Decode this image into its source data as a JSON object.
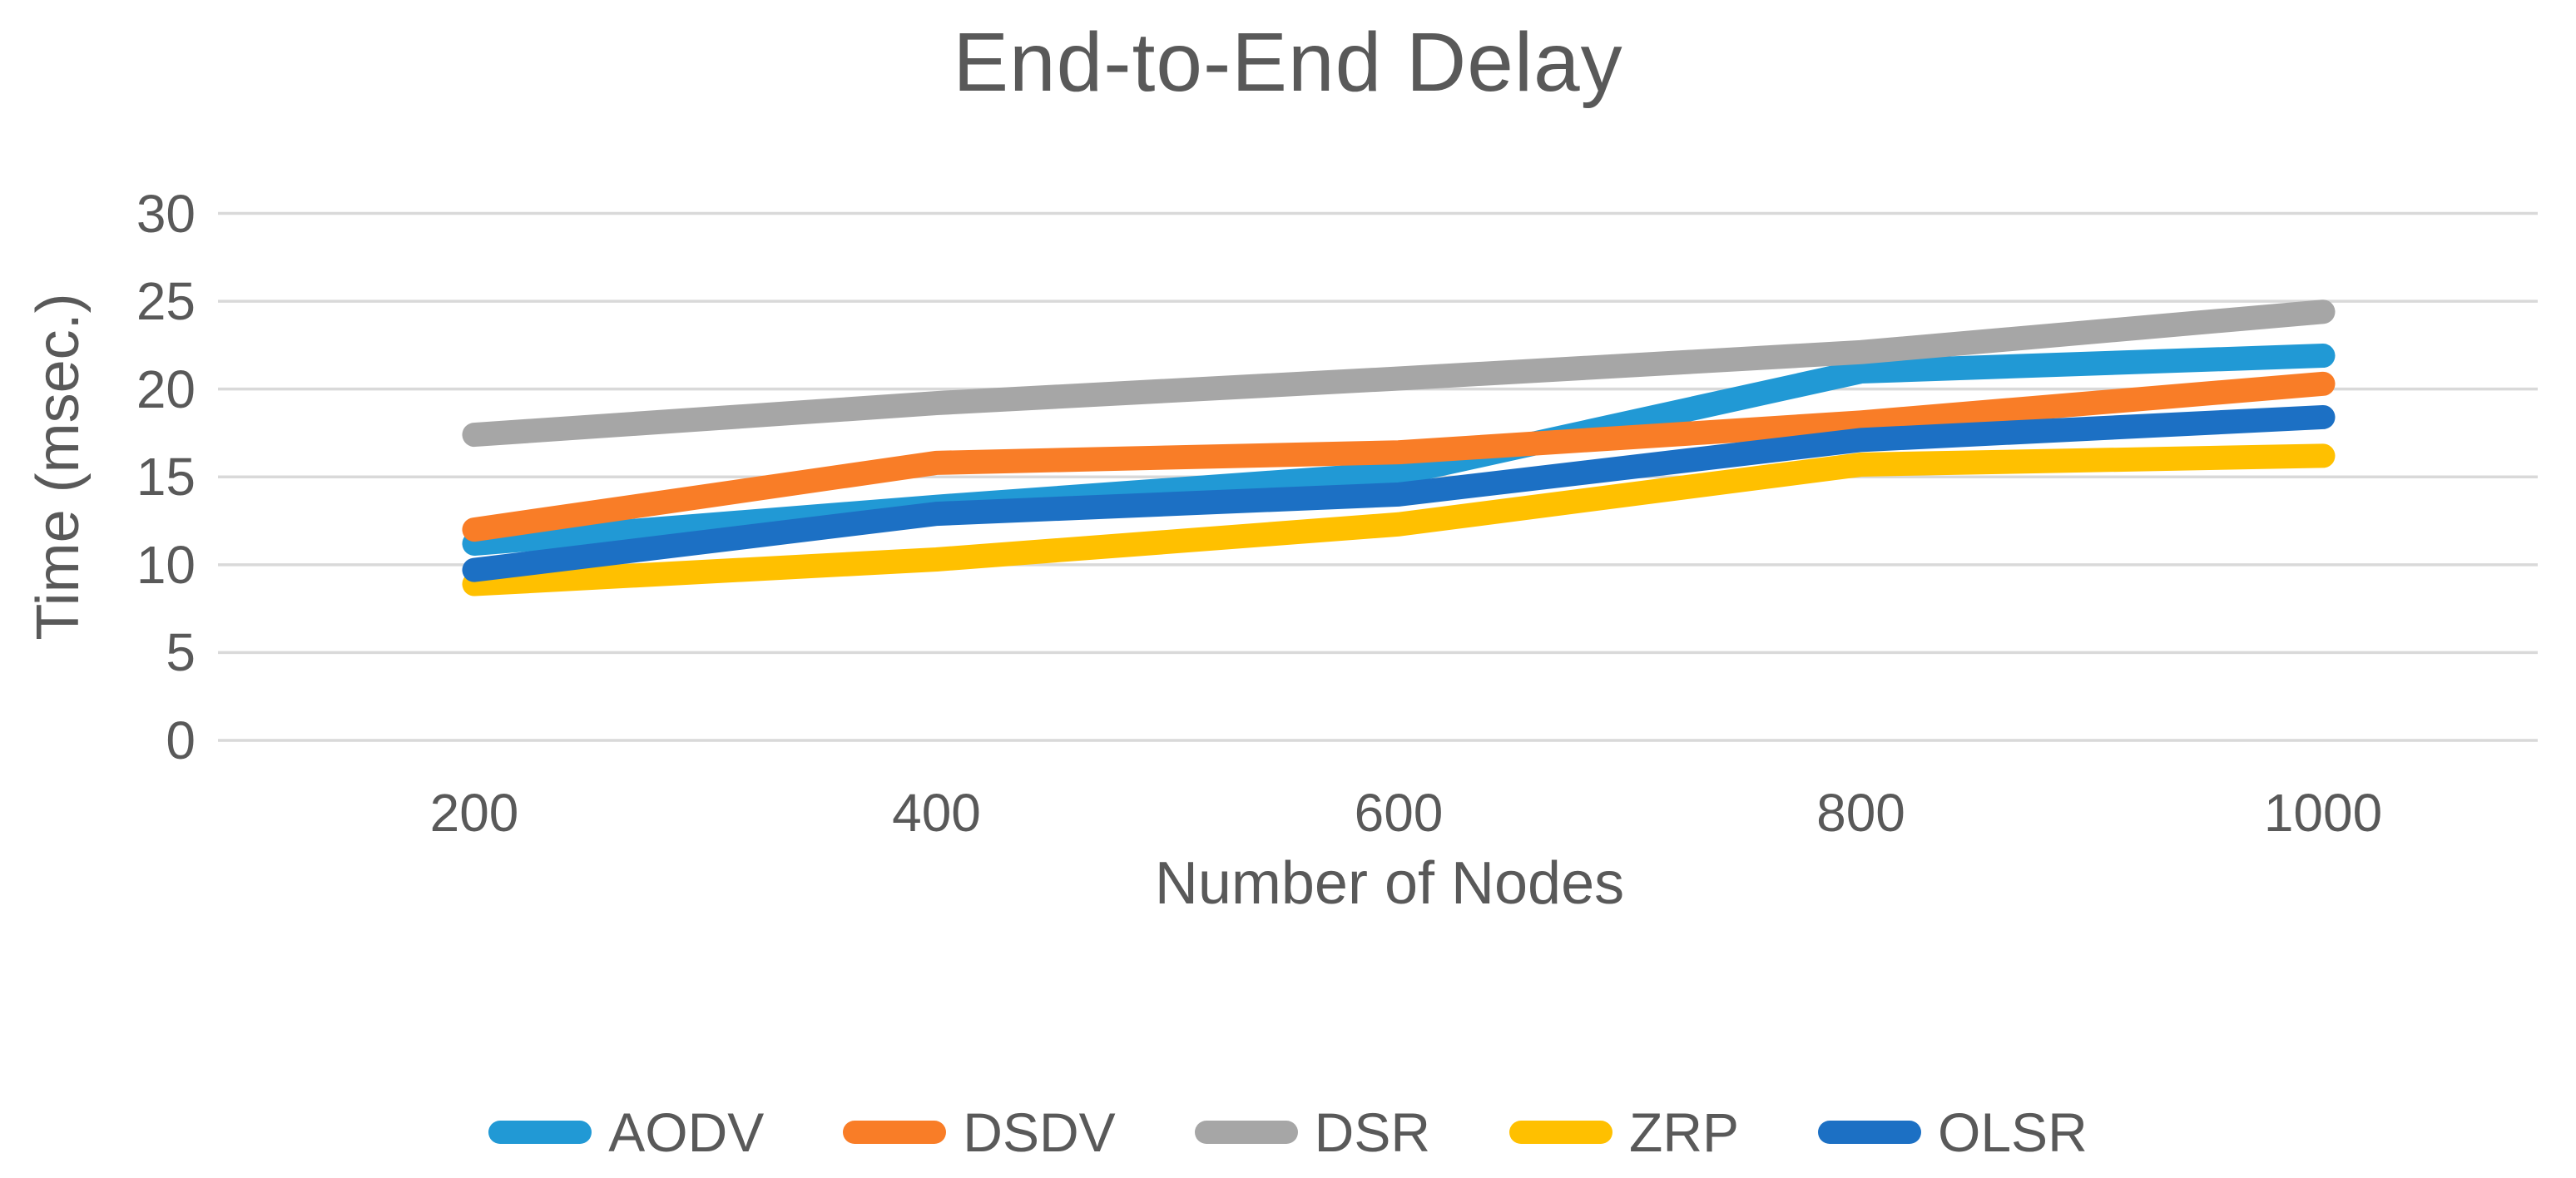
{
  "chart_data": {
    "type": "line",
    "title": "End-to-End Delay",
    "xlabel": "Number of Nodes",
    "ylabel": "Time (msec.)",
    "categories": [
      200,
      400,
      600,
      800,
      1000
    ],
    "y_ticks": [
      30,
      25,
      20,
      15,
      10,
      5,
      0
    ],
    "ylim": [
      0,
      30
    ],
    "grid": true,
    "legend_position": "bottom",
    "series": [
      {
        "name": "AODV",
        "color": "#2199D5",
        "values": [
          11.2,
          13.3,
          15.2,
          21.0,
          21.9
        ]
      },
      {
        "name": "DSDV",
        "color": "#F97D27",
        "values": [
          12.0,
          15.8,
          16.4,
          18.1,
          20.3
        ]
      },
      {
        "name": "DSR",
        "color": "#A6A6A6",
        "values": [
          17.4,
          19.2,
          20.6,
          22.1,
          24.4
        ]
      },
      {
        "name": "ZRP",
        "color": "#FFC000",
        "values": [
          8.9,
          10.3,
          12.3,
          15.7,
          16.2
        ]
      },
      {
        "name": "OLSR",
        "color": "#1C70C4",
        "values": [
          9.7,
          12.9,
          14.0,
          17.1,
          18.4
        ]
      }
    ],
    "colors": {
      "grid": "#D9D9D9",
      "tick_mark": "#D9D9D9",
      "text": "#595959",
      "background": "#FFFFFF"
    }
  }
}
